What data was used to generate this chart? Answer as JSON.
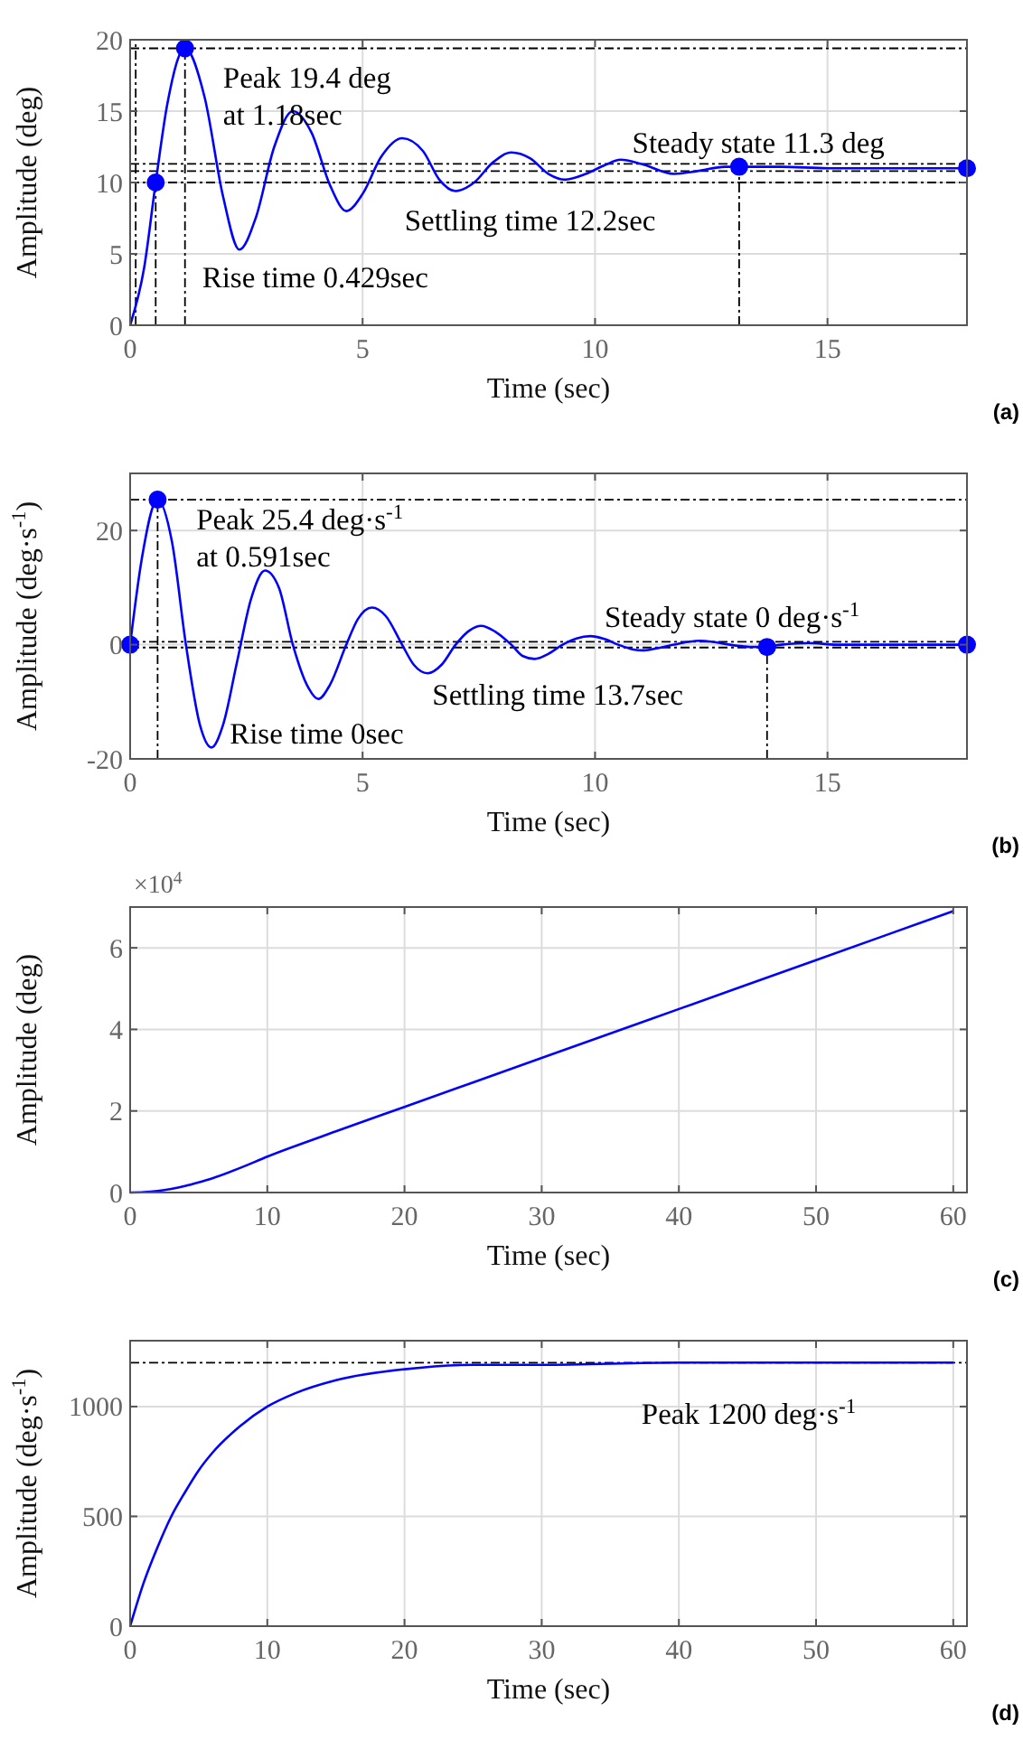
{
  "chart_data": [
    {
      "type": "line",
      "xlabel": "Time (sec)",
      "ylabel": "Amplitude (deg)",
      "xlim": [
        0,
        18
      ],
      "xticks": [
        0,
        5,
        10,
        15
      ],
      "ylim": [
        0,
        20
      ],
      "yticks": [
        0,
        5,
        10,
        15,
        20
      ],
      "grid": true,
      "series": [
        {
          "type": "line",
          "color": "#0000ff",
          "x": [
            0,
            0.3,
            0.55,
            0.8,
            1.18,
            1.6,
            2.0,
            2.35,
            2.7,
            3.1,
            3.5,
            3.9,
            4.3,
            4.65,
            5.0,
            5.4,
            5.85,
            6.3,
            6.65,
            7.0,
            7.4,
            7.8,
            8.2,
            8.6,
            9.0,
            9.35,
            9.8,
            10.2,
            10.55,
            11.0,
            11.7,
            12.2,
            12.8,
            13.1,
            14,
            15,
            16,
            18
          ],
          "values": [
            0,
            4,
            10,
            15.5,
            19.4,
            16,
            9,
            5.3,
            7.5,
            12.5,
            15,
            13.5,
            9.8,
            8,
            9.2,
            11.8,
            13.1,
            12.2,
            10.2,
            9.4,
            10,
            11.4,
            12.1,
            11.7,
            10.6,
            10.2,
            10.6,
            11.2,
            11.6,
            11.3,
            10.6,
            10.8,
            11.1,
            11.1,
            11.1,
            11,
            11,
            11
          ]
        },
        {
          "type": "scatter",
          "color": "#0000ff",
          "marker": "circle",
          "x": [
            0.55,
            1.18,
            13.1,
            18
          ],
          "values": [
            10,
            19.4,
            11.1,
            11
          ]
        }
      ],
      "ref_lines": [
        {
          "axis": "x",
          "value": 0.12,
          "color": "#000000",
          "line_style": "dashed"
        },
        {
          "axis": "x",
          "value": 0.55,
          "color": "#000000",
          "line_style": "dashed"
        },
        {
          "axis": "x",
          "value": 1.18,
          "color": "#000000",
          "line_style": "dashed"
        },
        {
          "axis": "x",
          "value": 13.1,
          "color": "#000000",
          "line_style": "dashed"
        },
        {
          "axis": "y",
          "value": 19.4,
          "color": "#000000",
          "line_style": "dashed"
        },
        {
          "axis": "y",
          "value": 10,
          "color": "#000000",
          "line_style": "dashed"
        },
        {
          "axis": "y",
          "value": 10.8,
          "color": "#000000",
          "line_style": "dashed"
        },
        {
          "axis": "y",
          "value": 11.3,
          "color": "#000000",
          "line_style": "dashed"
        }
      ],
      "annotations": [
        "Peak 19.4 deg",
        "at 1.18sec",
        "Rise time 0.429sec",
        "Settling time 12.2sec",
        "Steady state 11.3 deg",
        "(a)"
      ]
    },
    {
      "type": "line",
      "xlabel": "Time (sec)",
      "ylabel": "Amplitude (deg·s$^{-1}$)",
      "xlim": [
        0,
        18
      ],
      "xticks": [
        0,
        5,
        10,
        15
      ],
      "ylim": [
        -20,
        30
      ],
      "yticks": [
        -20,
        0,
        20
      ],
      "grid": true,
      "series": [
        {
          "type": "line",
          "color": "#0000ff",
          "x": [
            0,
            0.25,
            0.591,
            0.9,
            1.2,
            1.5,
            1.75,
            2.0,
            2.3,
            2.6,
            2.9,
            3.2,
            3.5,
            3.8,
            4.05,
            4.3,
            4.65,
            4.9,
            5.2,
            5.5,
            5.85,
            6.1,
            6.4,
            6.7,
            7.0,
            7.3,
            7.55,
            7.85,
            8.2,
            8.45,
            8.7,
            9.0,
            9.3,
            9.6,
            9.9,
            10.2,
            10.5,
            10.8,
            11.05,
            11.35,
            11.7,
            12.0,
            12.25,
            12.6,
            12.9,
            13.2,
            13.4,
            13.7,
            14.0,
            14.6,
            15.2,
            16,
            18
          ],
          "values": [
            0,
            15,
            25.4,
            18,
            0,
            -14,
            -18,
            -14,
            -3,
            8,
            13,
            10,
            0,
            -7,
            -9.5,
            -7,
            0,
            4.5,
            6.5,
            5,
            0,
            -3.5,
            -5,
            -3.5,
            0,
            2.5,
            3.3,
            2.3,
            0,
            -2,
            -2.5,
            -1.6,
            0,
            1.1,
            1.5,
            1,
            0,
            -0.8,
            -1,
            -0.6,
            0,
            0.5,
            0.7,
            0.4,
            0,
            -0.3,
            -0.4,
            -0.3,
            0,
            0.3,
            0,
            0,
            0
          ]
        },
        {
          "type": "scatter",
          "color": "#0000ff",
          "marker": "circle",
          "x": [
            0,
            0.591,
            13.7,
            18
          ],
          "values": [
            0,
            25.4,
            -0.4,
            0
          ]
        }
      ],
      "ref_lines": [
        {
          "axis": "x",
          "value": 0.591,
          "color": "#000000",
          "line_style": "dashed"
        },
        {
          "axis": "x",
          "value": 13.7,
          "color": "#000000",
          "line_style": "dashed"
        },
        {
          "axis": "y",
          "value": 25.4,
          "color": "#000000",
          "line_style": "dashed"
        },
        {
          "axis": "y",
          "value": -0.5,
          "color": "#000000",
          "line_style": "dashed"
        },
        {
          "axis": "y",
          "value": 0.5,
          "color": "#000000",
          "line_style": "dashed"
        }
      ],
      "annotations": [
        "Peak 25.4 deg·s$^{-1}$",
        "at 0.591sec",
        "Rise time 0sec",
        "Settling time 13.7sec",
        "Steady state 0 deg·s$^{-1}$",
        "(b)"
      ]
    },
    {
      "type": "line",
      "xlabel": "Time (sec)",
      "ylabel": "Amplitude (deg)",
      "xlim": [
        0,
        61
      ],
      "xticks": [
        0,
        10,
        20,
        30,
        40,
        50,
        60
      ],
      "ylim": [
        0,
        7
      ],
      "yticks": [
        0,
        2,
        4,
        6
      ],
      "grid": true,
      "series": [
        {
          "type": "line",
          "color": "#0000ff",
          "x": [
            0,
            1,
            2,
            3,
            4,
            5,
            6,
            8,
            10,
            15,
            20,
            30,
            40,
            50,
            60
          ],
          "values": [
            0,
            0.01,
            0.04,
            0.09,
            0.16,
            0.25,
            0.35,
            0.6,
            0.88,
            1.5,
            2.1,
            3.3,
            4.5,
            5.7,
            6.9
          ]
        }
      ],
      "annotations": [
        "×10$^{4}$",
        "(c)"
      ]
    },
    {
      "type": "line",
      "xlabel": "Time (sec)",
      "ylabel": "Amplitude (deg·s$^{-1}$)",
      "xlim": [
        0,
        61
      ],
      "xticks": [
        0,
        10,
        20,
        30,
        40,
        50,
        60
      ],
      "ylim": [
        0,
        1300
      ],
      "yticks": [
        0,
        500,
        1000
      ],
      "grid": true,
      "series": [
        {
          "type": "line",
          "color": "#0000ff",
          "x": [
            0,
            1,
            2,
            3,
            4,
            5,
            6,
            8,
            10,
            12,
            15,
            20,
            25,
            30,
            40,
            50,
            60
          ],
          "values": [
            0,
            200,
            360,
            500,
            610,
            710,
            790,
            910,
            1000,
            1060,
            1120,
            1170,
            1190,
            1190,
            1200,
            1200,
            1200
          ]
        }
      ],
      "ref_lines": [
        {
          "axis": "y",
          "value": 1200,
          "color": "#000000",
          "line_style": "dashed"
        }
      ],
      "annotations": [
        "Peak 1200 deg·s$^{-1}$",
        "(d)"
      ]
    }
  ]
}
